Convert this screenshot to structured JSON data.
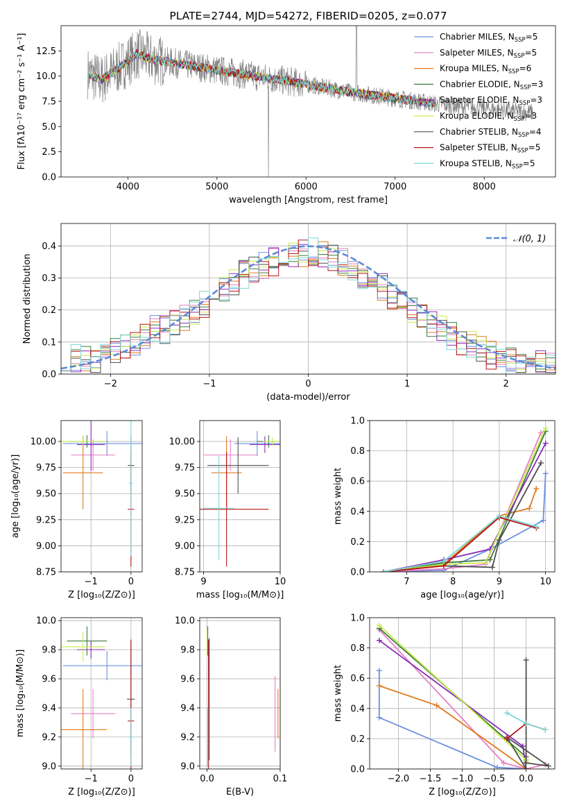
{
  "colors": {
    "chabrier_miles": "#6a8fe0",
    "salpeter_miles": "#e57fc4",
    "kroupa_miles": "#e07a1f",
    "chabrier_elodie": "#3c7a3c",
    "salpeter_elodie": "#8a2bb8",
    "kroupa_elodie": "#c7ea4a",
    "chabrier_stelib": "#4d4d4d",
    "salpeter_stelib": "#b51414",
    "kroupa_stelib": "#7fd6d6",
    "data": "#808080"
  },
  "chart_data": [
    {
      "id": "spectrum",
      "type": "line",
      "title": "PLATE=2744, MJD=54272, FIBERID=0205, z=0.077",
      "xlabel": "wavelength [Angstrom, rest frame]",
      "ylabel": "Flux [fλ10⁻¹⁷ erg cm⁻² s⁻¹ A⁻¹]",
      "xlim": [
        3250,
        8800
      ],
      "ylim": [
        0,
        15
      ],
      "xticks": [
        4000,
        5000,
        6000,
        7000,
        8000
      ],
      "yticks": [
        0.0,
        2.5,
        5.0,
        7.5,
        10.0,
        12.5
      ],
      "legend_position": "top-right",
      "series": [
        {
          "name": "Chabrier MILES, N",
          "sub": "SSP",
          "suffix": "=5",
          "color": "chabrier_miles"
        },
        {
          "name": "Salpeter MILES, N",
          "sub": "SSP",
          "suffix": "=5",
          "color": "salpeter_miles"
        },
        {
          "name": "Kroupa MILES, N",
          "sub": "SSP",
          "suffix": "=6",
          "color": "kroupa_miles"
        },
        {
          "name": "Chabrier ELODIE, N",
          "sub": "SSP",
          "suffix": "=3",
          "color": "chabrier_elodie"
        },
        {
          "name": "Salpeter ELODIE, N",
          "sub": "SSP",
          "suffix": "=3",
          "color": "salpeter_elodie"
        },
        {
          "name": "Kroupa ELODIE, N",
          "sub": "SSP",
          "suffix": "=3",
          "color": "kroupa_elodie"
        },
        {
          "name": "Chabrier STELIB, N",
          "sub": "SSP",
          "suffix": "=4",
          "color": "chabrier_stelib"
        },
        {
          "name": "Salpeter STELIB, N",
          "sub": "SSP",
          "suffix": "=5",
          "color": "salpeter_stelib"
        },
        {
          "name": "Kroupa STELIB, N",
          "sub": "SSP",
          "suffix": "=5",
          "color": "kroupa_stelib"
        }
      ],
      "continuum": {
        "x": [
          3550,
          3700,
          3900,
          4100,
          4300,
          4600,
          5000,
          5500,
          6000,
          6500,
          7000,
          7500,
          8000,
          8500
        ],
        "y": [
          10.3,
          9.6,
          10.8,
          12.2,
          11.6,
          11.2,
          10.6,
          9.9,
          9.2,
          8.4,
          7.8,
          7.2,
          6.8,
          6.4
        ]
      }
    },
    {
      "id": "residuals",
      "type": "histogram",
      "xlabel": "(data-model)/error",
      "ylabel": "Normed distribution",
      "xlim": [
        -2.5,
        2.5
      ],
      "ylim": [
        0,
        0.47
      ],
      "xticks": [
        -2,
        -1,
        0,
        1,
        2
      ],
      "yticks": [
        0.0,
        0.1,
        0.2,
        0.3,
        0.4
      ],
      "legend_position": "top-right",
      "gaussian_label": "𝒩(0, 1)",
      "gaussian_color": "#5a8ad6",
      "bin_start": -2.5,
      "bin_width": 0.1,
      "envelope": [
        0.055,
        0.05,
        0.045,
        0.045,
        0.05,
        0.07,
        0.09,
        0.1,
        0.12,
        0.14,
        0.14,
        0.16,
        0.18,
        0.2,
        0.22,
        0.24,
        0.27,
        0.29,
        0.31,
        0.33,
        0.34,
        0.35,
        0.36,
        0.37,
        0.38,
        0.38,
        0.37,
        0.36,
        0.35,
        0.33,
        0.31,
        0.29,
        0.27,
        0.24,
        0.22,
        0.2,
        0.18,
        0.16,
        0.14,
        0.12,
        0.1,
        0.09,
        0.075,
        0.06,
        0.05,
        0.04,
        0.035,
        0.03,
        0.028,
        0.025
      ]
    },
    {
      "id": "age_vs_z",
      "type": "errorbar",
      "xlabel": "Z [log₁₀(Z/Z⊙)]",
      "ylabel": "age  [log₁₀(age/yr)]",
      "xlim": [
        -1.75,
        0.28
      ],
      "ylim": [
        8.75,
        10.2
      ],
      "xticks": [
        -1,
        0
      ],
      "yticks": [
        8.75,
        9.0,
        9.25,
        9.5,
        9.75,
        10.0
      ],
      "points": [
        {
          "color": "chabrier_miles",
          "x": -0.6,
          "xerr": 1.1,
          "y": 9.98,
          "yerr": 0.12
        },
        {
          "color": "salpeter_miles",
          "x": -0.95,
          "xerr": 0.55,
          "y": 9.87,
          "yerr": 0.15
        },
        {
          "color": "kroupa_miles",
          "x": -1.2,
          "xerr": 0.5,
          "y": 9.7,
          "yerr": 0.35
        },
        {
          "color": "chabrier_elodie",
          "x": -1.1,
          "xerr": 0.45,
          "y": 10.0,
          "yerr": 0.06
        },
        {
          "color": "salpeter_elodie",
          "x": -1.0,
          "xerr": 0.35,
          "y": 9.97,
          "yerr": 0.25
        },
        {
          "color": "kroupa_elodie",
          "x": -1.2,
          "xerr": 0.55,
          "y": 10.0,
          "yerr": 0.04
        },
        {
          "color": "chabrier_stelib",
          "x": 0.0,
          "xerr": 0.08,
          "y": 9.77,
          "yerr": 0.27
        },
        {
          "color": "salpeter_stelib",
          "x": 0.0,
          "xerr": 0.08,
          "y": 9.35,
          "yerr": 0.55
        },
        {
          "color": "kroupa_stelib",
          "x": 0.0,
          "xerr": 0.05,
          "y": 9.6,
          "yerr": 0.7
        }
      ]
    },
    {
      "id": "age_vs_mass",
      "type": "errorbar",
      "xlabel": "mass [log₁₀(M/M⊙)]",
      "ylabel": "",
      "xlim": [
        8.95,
        10.0
      ],
      "ylim": [
        8.75,
        10.2
      ],
      "xticks": [
        9,
        10
      ],
      "yticks": [
        8.75,
        9.0,
        9.25,
        9.5,
        9.75,
        10.0
      ],
      "points": [
        {
          "color": "chabrier_miles",
          "x": 9.7,
          "xerr": 0.3,
          "y": 9.98,
          "yerr": 0.12
        },
        {
          "color": "salpeter_miles",
          "x": 9.35,
          "xerr": 0.35,
          "y": 9.87,
          "yerr": 0.15
        },
        {
          "color": "kroupa_miles",
          "x": 9.3,
          "xerr": 0.2,
          "y": 9.7,
          "yerr": 0.35
        },
        {
          "color": "chabrier_elodie",
          "x": 9.85,
          "xerr": 0.15,
          "y": 10.0,
          "yerr": 0.06
        },
        {
          "color": "salpeter_elodie",
          "x": 9.8,
          "xerr": 0.2,
          "y": 9.97,
          "yerr": 0.08
        },
        {
          "color": "kroupa_elodie",
          "x": 9.9,
          "xerr": 0.12,
          "y": 10.0,
          "yerr": 0.04
        },
        {
          "color": "chabrier_stelib",
          "x": 9.45,
          "xerr": 0.4,
          "y": 9.77,
          "yerr": 0.27
        },
        {
          "color": "salpeter_stelib",
          "x": 9.3,
          "xerr": 0.55,
          "y": 9.35,
          "yerr": 0.55
        },
        {
          "color": "kroupa_stelib",
          "x": 9.2,
          "xerr": 0.2,
          "y": 9.36,
          "yerr": 0.5
        }
      ]
    },
    {
      "id": "weight_vs_age",
      "type": "line",
      "xlabel": "age  [log₁₀(age/yr)]",
      "ylabel": "mass weight",
      "xlim": [
        6.2,
        10.2
      ],
      "ylim": [
        0,
        1.0
      ],
      "xticks": [
        7,
        8,
        9,
        10
      ],
      "yticks": [
        0.0,
        0.2,
        0.4,
        0.6,
        0.8,
        1.0
      ],
      "series": [
        {
          "color": "chabrier_miles",
          "x": [
            6.5,
            7.8,
            8.8,
            9.95,
            10.0
          ],
          "y": [
            0.0,
            0.01,
            0.15,
            0.34,
            0.65
          ]
        },
        {
          "color": "salpeter_miles",
          "x": [
            6.5,
            7.8,
            8.7,
            9.9
          ],
          "y": [
            0.0,
            0.02,
            0.05,
            0.92
          ]
        },
        {
          "color": "kroupa_miles",
          "x": [
            6.5,
            7.8,
            9.0,
            9.65,
            9.8
          ],
          "y": [
            0.0,
            0.05,
            0.37,
            0.42,
            0.55
          ]
        },
        {
          "color": "chabrier_elodie",
          "x": [
            6.5,
            7.8,
            8.8,
            10.0
          ],
          "y": [
            0.0,
            0.06,
            0.08,
            0.93
          ]
        },
        {
          "color": "salpeter_elodie",
          "x": [
            6.5,
            7.8,
            8.8,
            10.0
          ],
          "y": [
            0.0,
            0.08,
            0.15,
            0.85
          ]
        },
        {
          "color": "kroupa_elodie",
          "x": [
            6.5,
            7.8,
            8.7,
            10.0
          ],
          "y": [
            0.0,
            0.05,
            0.06,
            0.95
          ]
        },
        {
          "color": "chabrier_stelib",
          "x": [
            6.5,
            7.8,
            8.85,
            9.0,
            9.9
          ],
          "y": [
            0.0,
            0.04,
            0.03,
            0.21,
            0.72
          ]
        },
        {
          "color": "salpeter_stelib",
          "x": [
            6.5,
            7.8,
            9.0,
            9.8
          ],
          "y": [
            0.0,
            0.04,
            0.36,
            0.29
          ]
        },
        {
          "color": "kroupa_stelib",
          "x": [
            6.5,
            7.8,
            9.0,
            9.8
          ],
          "y": [
            0.0,
            0.07,
            0.37,
            0.3
          ]
        }
      ]
    },
    {
      "id": "mass_vs_z",
      "type": "errorbar",
      "xlabel": "Z [log₁₀(Z/Z⊙)]",
      "ylabel": "mass [log₁₀(M/M⊙)]",
      "xlim": [
        -1.75,
        0.28
      ],
      "ylim": [
        8.98,
        10.02
      ],
      "xticks": [
        -1,
        0
      ],
      "yticks": [
        9.0,
        9.2,
        9.4,
        9.6,
        9.8,
        10.0
      ],
      "points": [
        {
          "color": "chabrier_miles",
          "x": -0.6,
          "xerr": 1.1,
          "y": 9.69,
          "yerr": 0.1
        },
        {
          "color": "salpeter_miles",
          "x": -0.95,
          "xerr": 0.55,
          "y": 9.36,
          "yerr": 0.17
        },
        {
          "color": "kroupa_miles",
          "x": -1.2,
          "xerr": 0.6,
          "y": 9.25,
          "yerr": 0.28
        },
        {
          "color": "chabrier_elodie",
          "x": -1.1,
          "xerr": 0.5,
          "y": 9.86,
          "yerr": 0.1
        },
        {
          "color": "salpeter_elodie",
          "x": -1.0,
          "xerr": 0.35,
          "y": 9.8,
          "yerr": 0.06
        },
        {
          "color": "kroupa_elodie",
          "x": -1.2,
          "xerr": 0.55,
          "y": 9.82,
          "yerr": 0.1
        },
        {
          "color": "chabrier_stelib",
          "x": 0.0,
          "xerr": 0.1,
          "y": 9.46,
          "yerr": 0.4
        },
        {
          "color": "salpeter_stelib",
          "x": 0.0,
          "xerr": 0.08,
          "y": 9.31,
          "yerr": 0.56
        },
        {
          "color": "kroupa_stelib",
          "x": 0.0,
          "xerr": 0.05,
          "y": 9.2,
          "yerr": 0.2
        }
      ]
    },
    {
      "id": "mass_vs_ebv",
      "type": "errorbar",
      "xlabel": "E(B-V)",
      "ylabel": "",
      "xlim": [
        -0.01,
        0.1
      ],
      "ylim": [
        8.98,
        10.02
      ],
      "xticks": [
        0.0,
        0.1
      ],
      "yticks": [
        9.0,
        9.2,
        9.4,
        9.6,
        9.8,
        10.0
      ],
      "points": [
        {
          "color": "chabrier_miles",
          "x": 0.002,
          "xerr": 0,
          "y": 9.69,
          "yerr": 0.1
        },
        {
          "color": "salpeter_miles",
          "x": 0.093,
          "xerr": 0,
          "y": 9.36,
          "yerr": 0.26
        },
        {
          "color": "kroupa_miles",
          "x": 0.097,
          "xerr": 0,
          "y": 9.36,
          "yerr": 0.17
        },
        {
          "color": "chabrier_elodie",
          "x": 0.001,
          "xerr": 0,
          "y": 9.86,
          "yerr": 0.1
        },
        {
          "color": "salpeter_elodie",
          "x": 0.002,
          "xerr": 0,
          "y": 9.8,
          "yerr": 0.06
        },
        {
          "color": "kroupa_elodie",
          "x": 0.0,
          "xerr": 0,
          "y": 9.85,
          "yerr": 0.1
        },
        {
          "color": "chabrier_stelib",
          "x": 0.003,
          "xerr": 0,
          "y": 9.46,
          "yerr": 0.42
        },
        {
          "color": "salpeter_stelib",
          "x": 0.002,
          "xerr": 0,
          "y": 9.31,
          "yerr": 0.56
        },
        {
          "color": "kroupa_stelib",
          "x": 0.001,
          "xerr": 0,
          "y": 9.2,
          "yerr": 0.2
        }
      ]
    },
    {
      "id": "weight_vs_z",
      "type": "line",
      "xlabel": "Z [log₁₀(Z/Z⊙)]",
      "ylabel": "mass weight",
      "xlim": [
        -2.45,
        0.45
      ],
      "ylim": [
        0,
        1.0
      ],
      "xticks": [
        -2.0,
        -1.5,
        -1.0,
        -0.5,
        0.0
      ],
      "yticks": [
        0.0,
        0.2,
        0.4,
        0.6,
        0.8,
        1.0
      ],
      "series": [
        {
          "color": "chabrier_miles",
          "x": [
            -2.3,
            -2.3,
            -0.45,
            0.0
          ],
          "y": [
            0.65,
            0.34,
            0.01,
            0.0
          ]
        },
        {
          "color": "salpeter_miles",
          "x": [
            -2.3,
            -0.35,
            0.0,
            0.3
          ],
          "y": [
            0.92,
            0.04,
            0.0,
            0.03
          ]
        },
        {
          "color": "kroupa_miles",
          "x": [
            -2.3,
            -1.4,
            0.0
          ],
          "y": [
            0.55,
            0.42,
            0.0
          ]
        },
        {
          "color": "chabrier_elodie",
          "x": [
            -2.3,
            0.0,
            0.0
          ],
          "y": [
            0.93,
            0.08,
            0.06
          ]
        },
        {
          "color": "salpeter_elodie",
          "x": [
            -2.3,
            -0.05,
            0.0
          ],
          "y": [
            0.85,
            0.15,
            0.0
          ]
        },
        {
          "color": "kroupa_elodie",
          "x": [
            -2.3,
            0.0,
            0.0
          ],
          "y": [
            0.95,
            0.06,
            0.05
          ]
        },
        {
          "color": "chabrier_stelib",
          "x": [
            0.0,
            0.0,
            0.35,
            -0.3,
            0.0
          ],
          "y": [
            0.72,
            0.04,
            0.02,
            0.21,
            0.0
          ]
        },
        {
          "color": "salpeter_stelib",
          "x": [
            -0.3,
            0.0,
            0.3
          ],
          "y": [
            0.2,
            0.3,
            0.26
          ]
        },
        {
          "color": "kroupa_stelib",
          "x": [
            -0.3,
            0.0,
            0.3
          ],
          "y": [
            0.37,
            0.3,
            0.26
          ]
        }
      ]
    }
  ]
}
